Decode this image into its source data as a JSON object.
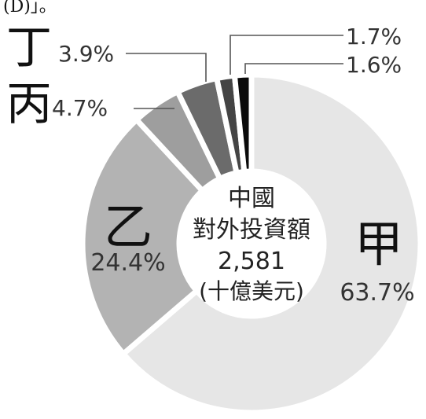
{
  "top_fragment": "(D)」。",
  "chart_data": {
    "type": "pie",
    "donut": true,
    "center_label": [
      "中國",
      "對外投資額",
      "2,581",
      "(十億美元)"
    ],
    "slices": [
      {
        "label": "甲",
        "value": 63.7,
        "value_label": "63.7%",
        "color": "#e6e6e6"
      },
      {
        "label": "乙",
        "value": 24.4,
        "value_label": "24.4%",
        "color": "#b3b3b3"
      },
      {
        "label": "丙",
        "value": 4.7,
        "value_label": "4.7%",
        "color": "#9e9e9e"
      },
      {
        "label": "丁",
        "value": 3.9,
        "value_label": "3.9%",
        "color": "#6b6b6b"
      },
      {
        "label": "",
        "value": 1.7,
        "value_label": "1.7%",
        "color": "#444444"
      },
      {
        "label": "",
        "value": 1.6,
        "value_label": "1.6%",
        "color": "#0a0a0a"
      }
    ],
    "start_angle_deg": 0,
    "direction": "clockwise"
  }
}
